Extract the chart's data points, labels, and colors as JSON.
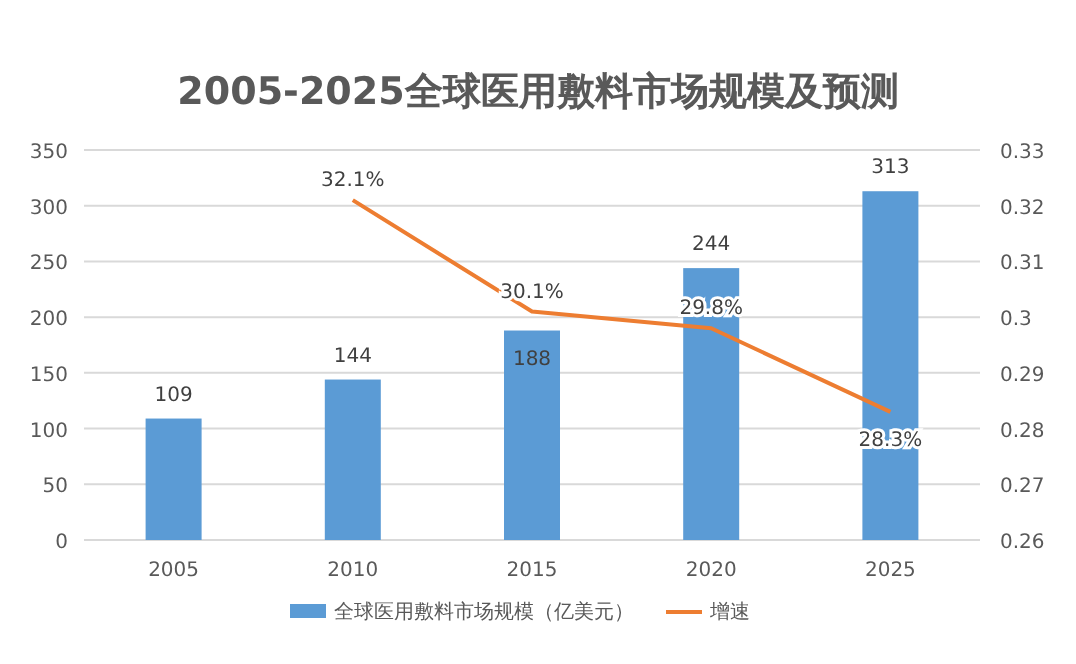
{
  "chart_data": {
    "type": "bar",
    "title": "2005-2025全球医用敷料市场规模及预测",
    "categories": [
      "2005",
      "2010",
      "2015",
      "2020",
      "2025"
    ],
    "series": [
      {
        "name": "全球医用敷料市场规模（亿美元）",
        "type": "bar",
        "color": "#5b9bd5",
        "values": [
          109,
          144,
          188,
          244,
          313
        ],
        "value_labels": [
          "109",
          "144",
          "188",
          "244",
          "313"
        ]
      },
      {
        "name": "增速",
        "type": "line",
        "axis": "y2",
        "color": "#ed7d31",
        "values": [
          null,
          0.321,
          0.301,
          0.298,
          0.283
        ],
        "value_labels": [
          null,
          "32.1%",
          "30.1%",
          "29.8%",
          "28.3%"
        ]
      }
    ],
    "ylim": [
      0,
      350
    ],
    "yticks": [
      0,
      50,
      100,
      150,
      200,
      250,
      300,
      350
    ],
    "y2lim": [
      0.26,
      0.33
    ],
    "y2ticks": [
      0.26,
      0.27,
      0.28,
      0.29,
      0.3,
      0.31,
      0.32,
      0.33
    ],
    "grid": "y",
    "legend": "bottom"
  }
}
